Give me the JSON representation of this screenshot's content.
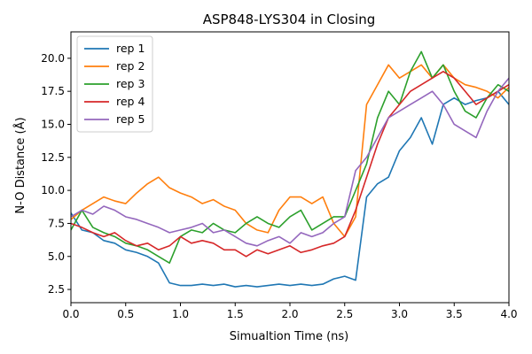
{
  "chart_data": {
    "type": "line",
    "title": "ASP848-LYS304 in Closing",
    "xlabel": "Simualtion Time (ns)",
    "ylabel": "N-O Distance (Å)",
    "xlim": [
      0,
      4
    ],
    "ylim": [
      1.5,
      22.0
    ],
    "xticks": [
      "0.0",
      "0.5",
      "1.0",
      "1.5",
      "2.0",
      "2.5",
      "3.0",
      "3.5",
      "4.0"
    ],
    "yticks": [
      "2.5",
      "5.0",
      "7.5",
      "10.0",
      "12.5",
      "15.0",
      "17.5",
      "20.0"
    ],
    "legend_position": "upper-left",
    "grid": false,
    "x": [
      0.0,
      0.1,
      0.2,
      0.3,
      0.4,
      0.5,
      0.6,
      0.7,
      0.8,
      0.9,
      1.0,
      1.1,
      1.2,
      1.3,
      1.4,
      1.5,
      1.6,
      1.7,
      1.8,
      1.9,
      2.0,
      2.1,
      2.2,
      2.3,
      2.4,
      2.5,
      2.6,
      2.7,
      2.8,
      2.9,
      3.0,
      3.1,
      3.2,
      3.3,
      3.4,
      3.5,
      3.6,
      3.7,
      3.8,
      3.9,
      4.0
    ],
    "series": [
      {
        "name": "rep 1",
        "color": "#1f77b4",
        "values": [
          8.3,
          7.0,
          6.8,
          6.2,
          6.0,
          5.5,
          5.3,
          5.0,
          4.5,
          3.0,
          2.8,
          2.8,
          2.9,
          2.8,
          2.9,
          2.7,
          2.8,
          2.7,
          2.8,
          2.9,
          2.8,
          2.9,
          2.8,
          2.9,
          3.3,
          3.5,
          3.2,
          9.5,
          10.5,
          11.0,
          13.0,
          14.0,
          15.5,
          13.5,
          16.5,
          17.0,
          16.5,
          16.8,
          17.0,
          17.5,
          16.5
        ]
      },
      {
        "name": "rep 2",
        "color": "#ff7f0e",
        "values": [
          7.8,
          8.5,
          9.0,
          9.5,
          9.2,
          9.0,
          9.8,
          10.5,
          11.0,
          10.2,
          9.8,
          9.5,
          9.0,
          9.3,
          8.8,
          8.5,
          7.5,
          7.0,
          6.8,
          8.5,
          9.5,
          9.5,
          9.0,
          9.5,
          7.5,
          6.5,
          8.0,
          16.5,
          18.0,
          19.5,
          18.5,
          19.0,
          19.5,
          18.5,
          19.5,
          18.5,
          18.0,
          17.8,
          17.5,
          17.0,
          17.8
        ]
      },
      {
        "name": "rep 3",
        "color": "#2ca02c",
        "values": [
          7.0,
          8.5,
          7.2,
          6.8,
          6.5,
          6.0,
          5.8,
          5.5,
          5.0,
          4.5,
          6.5,
          7.0,
          6.8,
          7.5,
          7.0,
          6.8,
          7.5,
          8.0,
          7.5,
          7.2,
          8.0,
          8.5,
          7.0,
          7.5,
          8.0,
          8.0,
          10.0,
          12.0,
          15.5,
          17.5,
          16.5,
          19.0,
          20.5,
          18.5,
          19.5,
          17.5,
          16.0,
          15.5,
          17.0,
          18.0,
          17.5
        ]
      },
      {
        "name": "rep 4",
        "color": "#d62728",
        "values": [
          7.5,
          7.2,
          6.8,
          6.5,
          6.8,
          6.2,
          5.8,
          6.0,
          5.5,
          5.8,
          6.5,
          6.0,
          6.2,
          6.0,
          5.5,
          5.5,
          5.0,
          5.5,
          5.2,
          5.5,
          5.8,
          5.3,
          5.5,
          5.8,
          6.0,
          6.5,
          8.5,
          11.0,
          13.5,
          15.5,
          16.5,
          17.5,
          18.0,
          18.5,
          19.0,
          18.5,
          17.5,
          16.5,
          17.0,
          17.5,
          18.0
        ]
      },
      {
        "name": "rep 5",
        "color": "#9467bd",
        "values": [
          8.0,
          8.5,
          8.2,
          8.8,
          8.5,
          8.0,
          7.8,
          7.5,
          7.2,
          6.8,
          7.0,
          7.2,
          7.5,
          6.8,
          7.0,
          6.5,
          6.0,
          5.8,
          6.2,
          6.5,
          6.0,
          6.8,
          6.5,
          6.8,
          7.5,
          8.0,
          11.5,
          12.5,
          14.0,
          15.5,
          16.0,
          16.5,
          17.0,
          17.5,
          16.5,
          15.0,
          14.5,
          14.0,
          16.0,
          17.5,
          18.5
        ]
      }
    ]
  }
}
